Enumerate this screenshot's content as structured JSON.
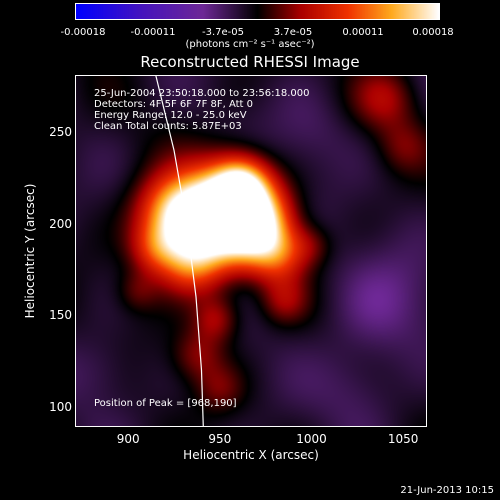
{
  "chart_data": {
    "type": "heatmap",
    "title": "Reconstructed RHESSI Image",
    "xlabel": "Heliocentric X (arcsec)",
    "ylabel": "Heliocentric Y (arcsec)",
    "xlim": [
      871,
      1063
    ],
    "ylim": [
      89,
      281
    ],
    "x_ticks": [
      "900",
      "950",
      "1000",
      "1050"
    ],
    "y_ticks": [
      "100",
      "150",
      "200",
      "250"
    ],
    "colorbar": {
      "ticks": [
        "-0.00018",
        "-0.00011",
        "-3.7e-05",
        "3.7e-05",
        "0.00011",
        "0.00018"
      ],
      "range": [
        -0.00018,
        0.00018
      ],
      "units": "(photons cm⁻² s⁻¹ asec⁻²)"
    },
    "annotations": {
      "time": "25-Jun-2004 23:50:18.000 to 23:56:18.000",
      "detectors": "Detectors: 4F 5F 6F 7F 8F, Att 0",
      "energy": "Energy Range: 12.0 - 25.0 keV",
      "clean": "Clean    Total counts: 5.87E+03",
      "peak": "Position of Peak = [968,190]"
    },
    "peak": [
      968,
      190
    ],
    "limb_curve": [
      [
        915,
        281
      ],
      [
        925,
        240
      ],
      [
        932,
        200
      ],
      [
        937,
        160
      ],
      [
        940,
        120
      ],
      [
        941,
        89
      ]
    ]
  },
  "footer": {
    "date": "21-Jun-2013 10:15"
  }
}
